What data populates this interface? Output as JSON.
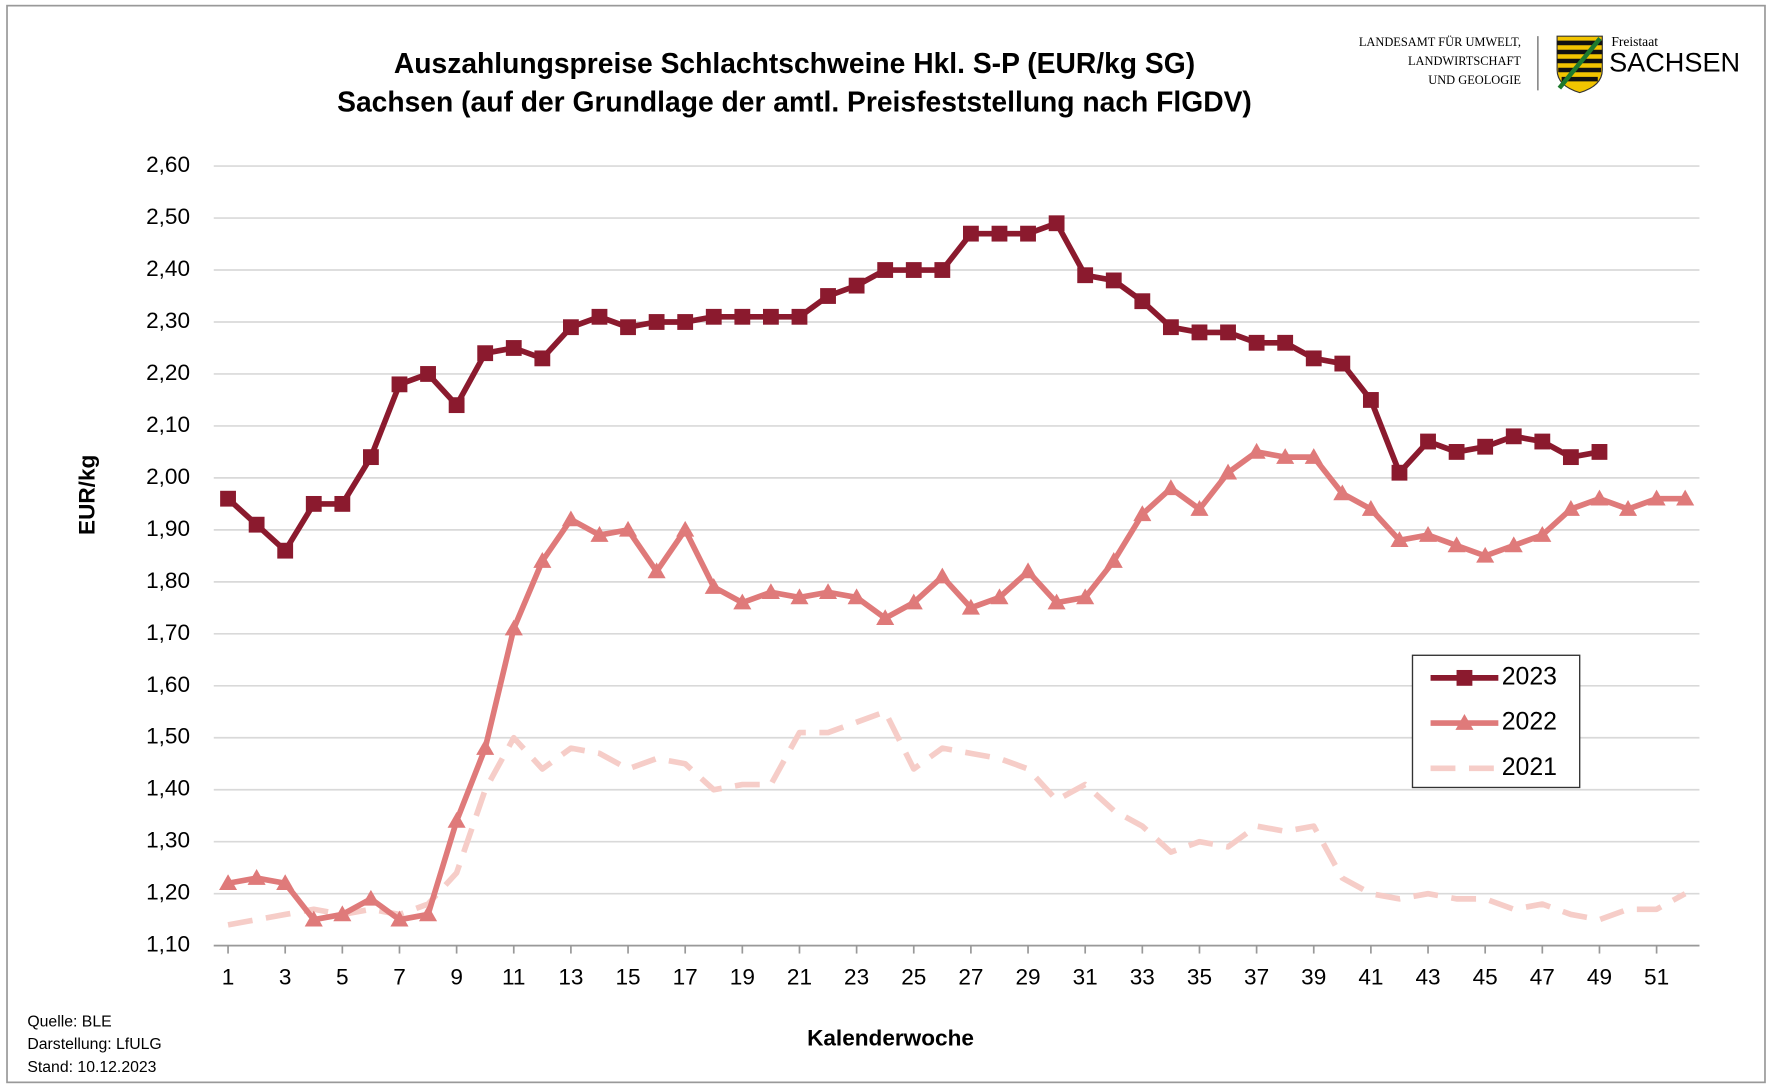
{
  "chart_data": {
    "type": "line",
    "title": [
      "Auszahlungspreise Schlachtschweine Hkl. S-P (EUR/kg SG)",
      "Sachsen (auf der Grundlage der amtl. Preisfeststellung nach FlGDV)"
    ],
    "y_label": "EUR/kg",
    "x_label": "Kalenderwoche",
    "notes": [
      "Quelle:  BLE",
      "Darstellung:  LfULG",
      "Stand:  10.12.2023"
    ],
    "logo": {
      "agency": [
        "LANDESAMT FÜR UMWELT,",
        "LANDWIRTSCHAFT",
        "UND GEOLOGIE"
      ],
      "state_small": "Freistaat",
      "state": "SACHSEN"
    },
    "x": [
      1,
      2,
      3,
      4,
      5,
      6,
      7,
      8,
      9,
      10,
      11,
      12,
      13,
      14,
      15,
      16,
      17,
      18,
      19,
      20,
      21,
      22,
      23,
      24,
      25,
      26,
      27,
      28,
      29,
      30,
      31,
      32,
      33,
      34,
      35,
      36,
      37,
      38,
      39,
      40,
      41,
      42,
      43,
      44,
      45,
      46,
      47,
      48,
      49,
      50,
      51,
      52
    ],
    "xlim": [
      0.5,
      52.5
    ],
    "xticks": [
      1,
      3,
      5,
      7,
      9,
      11,
      13,
      15,
      17,
      19,
      21,
      23,
      25,
      27,
      29,
      31,
      33,
      35,
      37,
      39,
      41,
      43,
      45,
      47,
      49,
      51
    ],
    "ylim": [
      1.1,
      2.6
    ],
    "yticks": [
      {
        "value": 1.1,
        "label": "1,10"
      },
      {
        "value": 1.2,
        "label": "1,20"
      },
      {
        "value": 1.3,
        "label": "1,30"
      },
      {
        "value": 1.4,
        "label": "1,40"
      },
      {
        "value": 1.5,
        "label": "1,50"
      },
      {
        "value": 1.6,
        "label": "1,60"
      },
      {
        "value": 1.7,
        "label": "1,70"
      },
      {
        "value": 1.8,
        "label": "1,80"
      },
      {
        "value": 1.9,
        "label": "1,90"
      },
      {
        "value": 2.0,
        "label": "2,00"
      },
      {
        "value": 2.1,
        "label": "2,10"
      },
      {
        "value": 2.2,
        "label": "2,20"
      },
      {
        "value": 2.3,
        "label": "2,30"
      },
      {
        "value": 2.4,
        "label": "2,40"
      },
      {
        "value": 2.5,
        "label": "2,50"
      },
      {
        "value": 2.6,
        "label": "2,60"
      }
    ],
    "grid": true,
    "legend": "right",
    "series": [
      {
        "name": "2023",
        "color": "#8b1a2e",
        "marker": "square",
        "dashed": false,
        "values": [
          1.96,
          1.91,
          1.86,
          1.95,
          1.95,
          2.04,
          2.18,
          2.2,
          2.14,
          2.24,
          2.25,
          2.23,
          2.29,
          2.31,
          2.29,
          2.3,
          2.3,
          2.31,
          2.31,
          2.31,
          2.31,
          2.35,
          2.37,
          2.4,
          2.4,
          2.4,
          2.47,
          2.47,
          2.47,
          2.49,
          2.39,
          2.38,
          2.34,
          2.29,
          2.28,
          2.28,
          2.26,
          2.26,
          2.23,
          2.22,
          2.15,
          2.01,
          2.07,
          2.05,
          2.06,
          2.08,
          2.07,
          2.04,
          2.05,
          null,
          null,
          null
        ]
      },
      {
        "name": "2022",
        "color": "#df7a7a",
        "marker": "triangle",
        "dashed": false,
        "values": [
          1.22,
          1.23,
          1.22,
          1.15,
          1.16,
          1.19,
          1.15,
          1.16,
          1.34,
          1.48,
          1.71,
          1.84,
          1.92,
          1.89,
          1.9,
          1.82,
          1.9,
          1.79,
          1.76,
          1.78,
          1.77,
          1.78,
          1.77,
          1.73,
          1.76,
          1.81,
          1.75,
          1.77,
          1.82,
          1.76,
          1.77,
          1.84,
          1.93,
          1.98,
          1.94,
          2.01,
          2.05,
          2.04,
          2.04,
          1.97,
          1.94,
          1.88,
          1.89,
          1.87,
          1.85,
          1.87,
          1.89,
          1.94,
          1.96,
          1.94,
          1.96,
          1.96
        ]
      },
      {
        "name": "2021",
        "color": "#f6cdc8",
        "marker": "none",
        "dashed": true,
        "values": [
          1.14,
          1.15,
          1.16,
          1.17,
          1.16,
          1.17,
          1.16,
          1.18,
          1.24,
          1.4,
          1.5,
          1.44,
          1.48,
          1.47,
          1.44,
          1.46,
          1.45,
          1.4,
          1.41,
          1.41,
          1.51,
          1.51,
          1.53,
          1.55,
          1.44,
          1.48,
          1.47,
          1.46,
          1.44,
          1.38,
          1.41,
          1.36,
          1.33,
          1.28,
          1.3,
          1.29,
          1.33,
          1.32,
          1.33,
          1.23,
          1.2,
          1.19,
          1.2,
          1.19,
          1.19,
          1.17,
          1.18,
          1.16,
          1.15,
          1.17,
          1.17,
          1.2
        ]
      }
    ]
  }
}
